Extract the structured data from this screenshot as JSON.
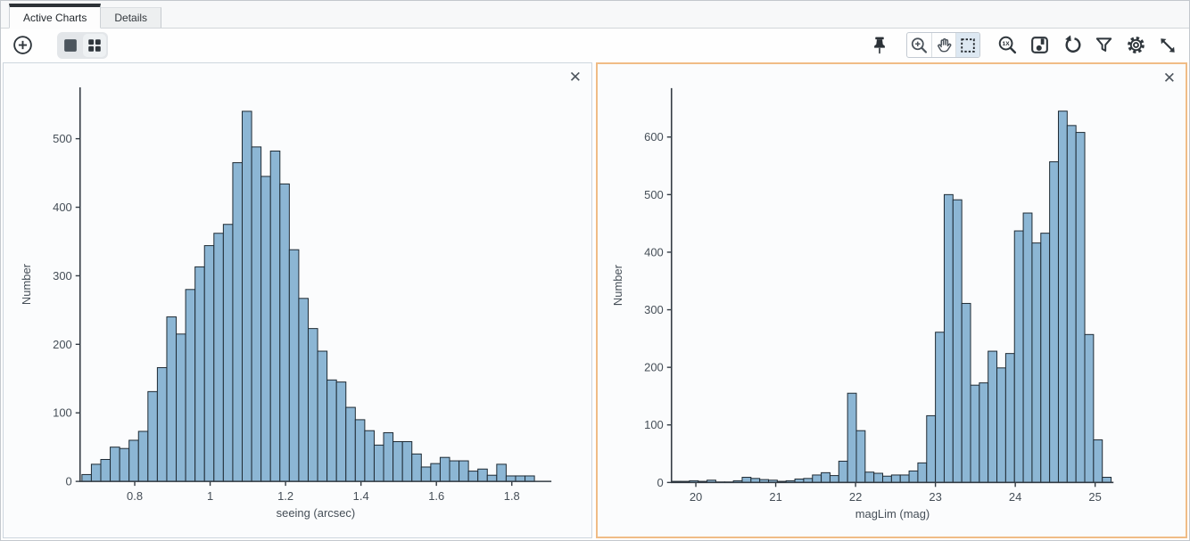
{
  "tabs": [
    {
      "label": "Active Charts",
      "active": true
    },
    {
      "label": "Details",
      "active": false
    }
  ],
  "toolbar": {
    "left_icons": [
      "add-chart",
      "single-tile-layout",
      "grid-tile-layout"
    ],
    "right_icons": [
      "pin",
      "zoom-in",
      "pan",
      "select-area",
      "zoom-original-1x",
      "save",
      "rotate",
      "filter",
      "settings",
      "expand"
    ],
    "active_layout": "grid-tile-layout",
    "active_tool": "select-area",
    "zoom_reset_glyph": "1X"
  },
  "panels": [
    {
      "close_glyph": "✕",
      "selected": false
    },
    {
      "close_glyph": "✕",
      "selected": true
    }
  ],
  "colors": {
    "bar_fill": "#8cb6d4",
    "bar_stroke": "#1e2a33",
    "axis": "#343c44",
    "tick_text": "#454e57",
    "selected_panel_border": "#f0bc86",
    "active_tab_top": "#2d3237",
    "selected_tool_bg": "#dde8f2"
  },
  "chart_data": [
    {
      "type": "bar",
      "title": "",
      "xlabel": "seeing (arcsec)",
      "ylabel": "Number",
      "bin_start": 0.66,
      "bin_width": 0.025,
      "values": [
        10,
        25,
        32,
        50,
        48,
        60,
        73,
        131,
        166,
        240,
        215,
        280,
        313,
        344,
        362,
        375,
        465,
        540,
        488,
        445,
        482,
        434,
        338,
        267,
        223,
        190,
        148,
        145,
        108,
        90,
        74,
        53,
        71,
        58,
        58,
        40,
        21,
        26,
        35,
        30,
        30,
        15,
        18,
        9,
        25,
        8,
        8,
        8
      ],
      "xtick_values": [
        0.8,
        1,
        1.2,
        1.4,
        1.6,
        1.8
      ],
      "xtick_labels": [
        "0.8",
        "1",
        "1.2",
        "1.4",
        "1.6",
        "1.8"
      ],
      "ytick_values": [
        0,
        100,
        200,
        300,
        400,
        500
      ],
      "ytick_labels": [
        "0",
        "100",
        "200",
        "300",
        "400",
        "500"
      ],
      "xlim": [
        0.655,
        1.905
      ],
      "ylim": [
        0,
        575
      ],
      "grid": false,
      "legend": null
    },
    {
      "type": "bar",
      "title": "",
      "xlabel": "magLim (mag)",
      "ylabel": "Number",
      "bin_start": 19.7,
      "bin_width": 0.11,
      "values": [
        2,
        2,
        3,
        2,
        4,
        1,
        1,
        3,
        9,
        7,
        5,
        4,
        2,
        3,
        6,
        7,
        13,
        17,
        12,
        37,
        155,
        90,
        18,
        16,
        11,
        13,
        13,
        20,
        34,
        116,
        261,
        500,
        491,
        311,
        169,
        173,
        228,
        199,
        224,
        437,
        468,
        416,
        433,
        557,
        645,
        620,
        608,
        257,
        74,
        9
      ],
      "xtick_values": [
        20,
        21,
        22,
        23,
        24,
        25
      ],
      "xtick_labels": [
        "20",
        "21",
        "22",
        "23",
        "24",
        "25"
      ],
      "ytick_values": [
        0,
        100,
        200,
        300,
        400,
        500,
        600
      ],
      "ytick_labels": [
        "0",
        "100",
        "200",
        "300",
        "400",
        "500",
        "600"
      ],
      "xlim": [
        19.695,
        25.23
      ],
      "ylim": [
        0,
        685
      ],
      "grid": false,
      "legend": null
    }
  ]
}
